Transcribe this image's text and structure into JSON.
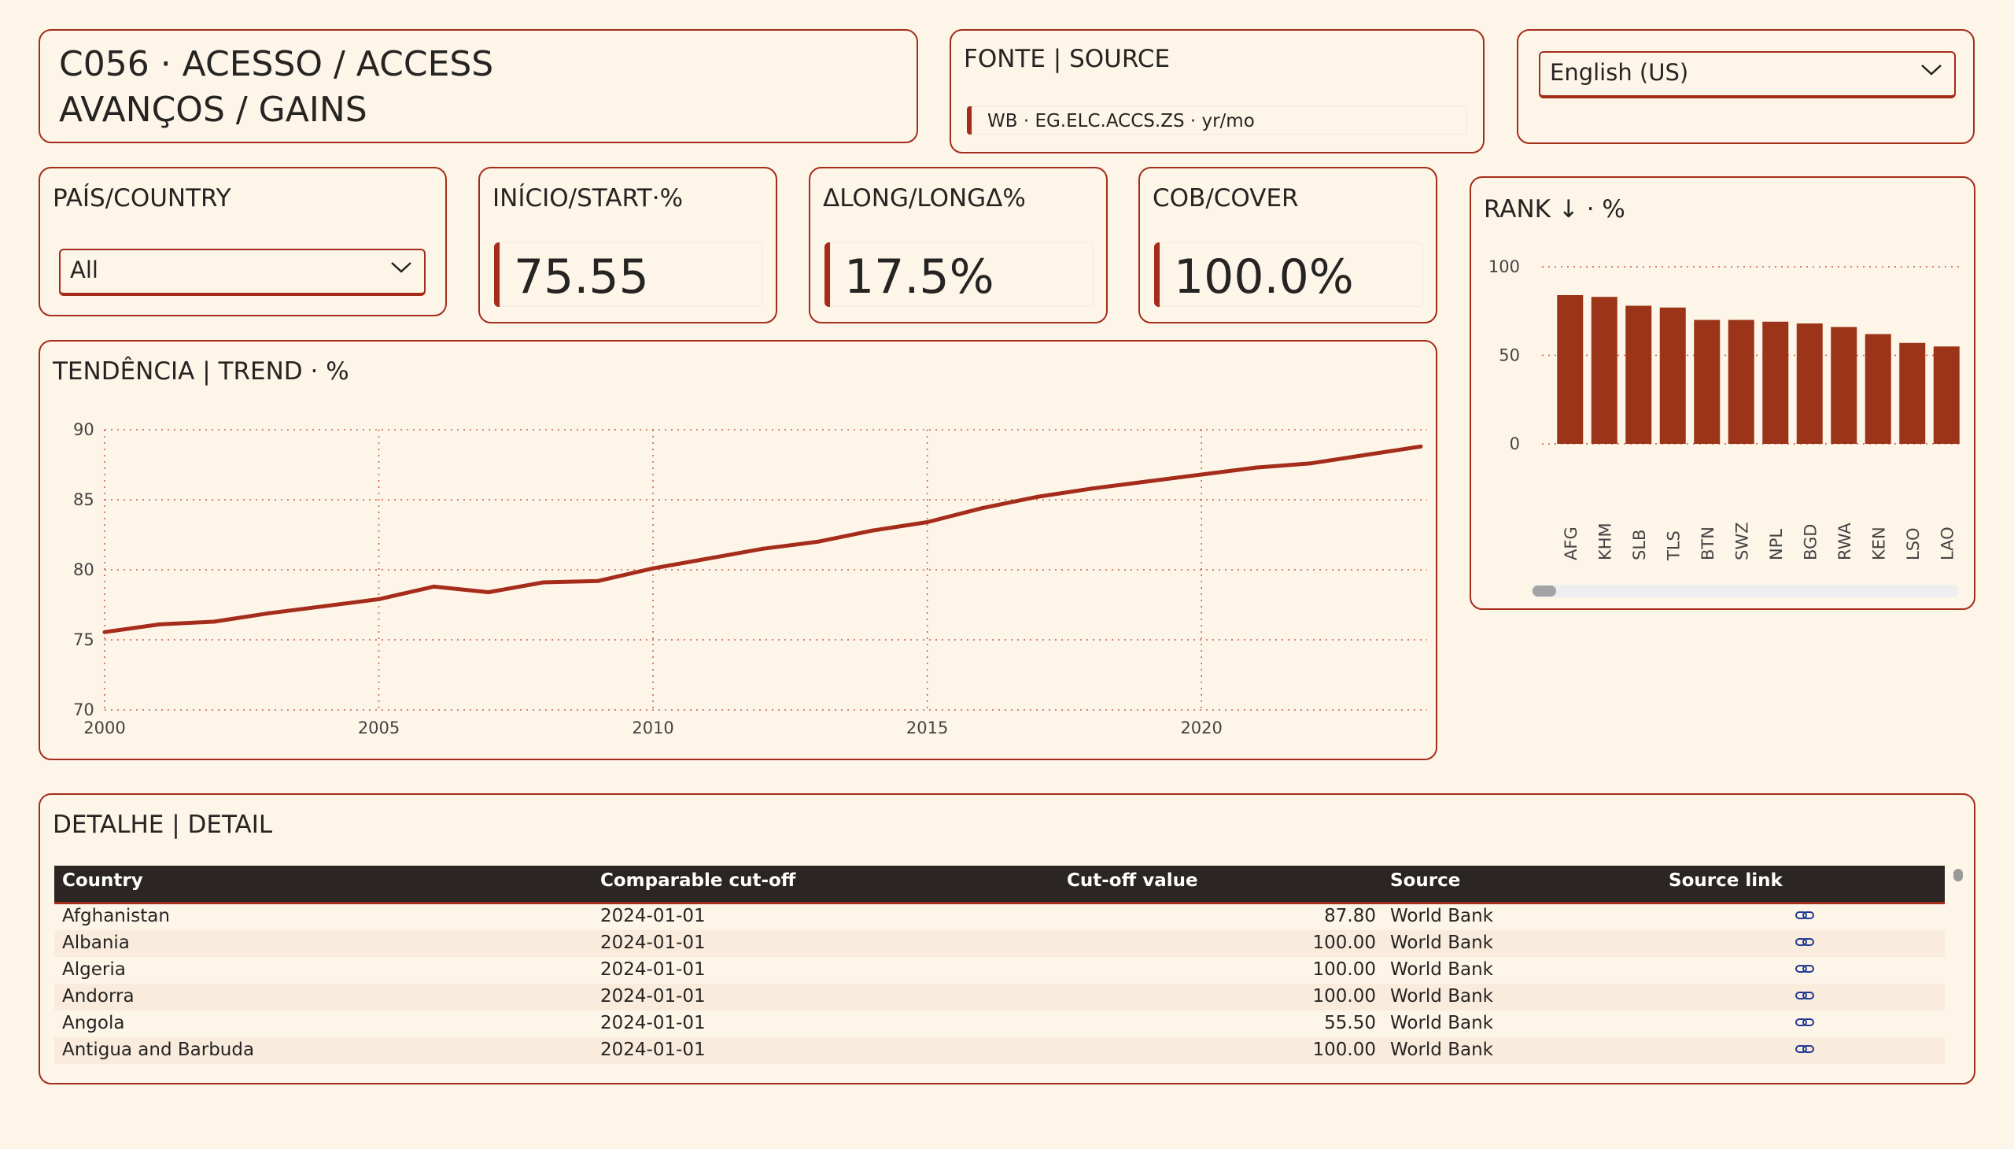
{
  "header": {
    "line1": "C056 · ACESSO / ACCESS",
    "line2": "AVANÇOS / GAINS"
  },
  "source": {
    "title": "FONTE | SOURCE",
    "text": "WB · EG.ELC.ACCS.ZS · yr/mo"
  },
  "language": {
    "value": "English (US)"
  },
  "country_filter": {
    "title": "PAÍS/COUNTRY",
    "value": "All"
  },
  "kpis": [
    {
      "title": "INÍCIO/START·%",
      "value": "75.55"
    },
    {
      "title": "ΔLONG/LONGΔ%",
      "value": "17.5%"
    },
    {
      "title": "COB/COVER",
      "value": "100.0%"
    }
  ],
  "trend": {
    "title": "TENDÊNCIA | TREND · %",
    "chart_data": {
      "type": "line",
      "x": [
        2000,
        2001,
        2002,
        2003,
        2004,
        2005,
        2006,
        2007,
        2008,
        2009,
        2010,
        2011,
        2012,
        2013,
        2014,
        2015,
        2016,
        2017,
        2018,
        2019,
        2020,
        2021,
        2022,
        2023,
        2024
      ],
      "series": [
        {
          "values": [
            75.55,
            76.1,
            76.3,
            76.9,
            77.4,
            77.9,
            78.8,
            78.4,
            79.1,
            79.2,
            80.1,
            80.8,
            81.5,
            82.0,
            82.8,
            83.4,
            84.4,
            85.2,
            85.8,
            86.3,
            86.8,
            87.3,
            87.6,
            88.2,
            88.8
          ],
          "color": "#a52c1a"
        }
      ],
      "xticks": [
        2000,
        2005,
        2010,
        2015,
        2020
      ],
      "yticks": [
        70,
        75,
        80,
        85,
        90
      ],
      "xlim": [
        2000,
        2024
      ],
      "ylim": [
        70,
        90
      ],
      "grid": true
    }
  },
  "rank": {
    "title": "RANK ↓ · %",
    "chart_data": {
      "type": "bar",
      "categories": [
        "AFG",
        "KHM",
        "SLB",
        "TLS",
        "BTN",
        "SWZ",
        "NPL",
        "BGD",
        "RWA",
        "KEN",
        "LSO",
        "LAO"
      ],
      "values": [
        84,
        83,
        78,
        77,
        70,
        70,
        69,
        68,
        66,
        62,
        57,
        55
      ],
      "yticks": [
        0,
        50,
        100
      ],
      "ylim": [
        0,
        100
      ],
      "color": "#9b3418",
      "grid": true
    }
  },
  "detail": {
    "title": "DETALHE | DETAIL",
    "columns": [
      "Country",
      "Comparable cut-off",
      "Cut-off value",
      "Source",
      "Source link"
    ],
    "rows": [
      [
        "Afghanistan",
        "2024-01-01",
        "87.80",
        "World Bank"
      ],
      [
        "Albania",
        "2024-01-01",
        "100.00",
        "World Bank"
      ],
      [
        "Algeria",
        "2024-01-01",
        "100.00",
        "World Bank"
      ],
      [
        "Andorra",
        "2024-01-01",
        "100.00",
        "World Bank"
      ],
      [
        "Angola",
        "2024-01-01",
        "55.50",
        "World Bank"
      ],
      [
        "Antigua and Barbuda",
        "2024-01-01",
        "100.00",
        "World Bank"
      ]
    ]
  },
  "colors": {
    "accent": "#a52c1a",
    "background": "#fdf5e8",
    "header_bg": "#2b2623",
    "link": "#1f3a93"
  }
}
